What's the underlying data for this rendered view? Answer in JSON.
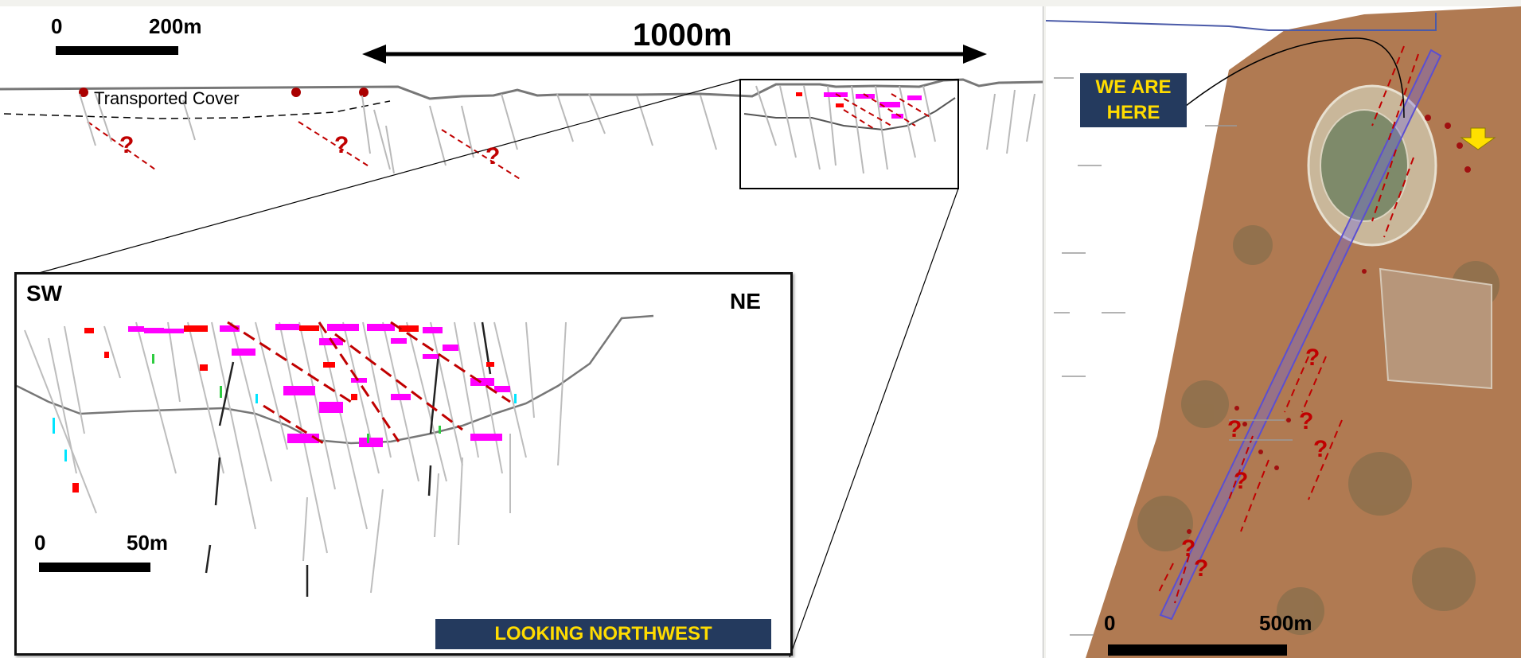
{
  "section": {
    "scale_small": {
      "start": "0",
      "end": "200m"
    },
    "scale_big": "1000m",
    "cover_label": "Transported Cover",
    "question_mark": "?"
  },
  "inset": {
    "left_orientation": "SW",
    "right_orientation": "NE",
    "scale": {
      "start": "0",
      "end": "50m"
    },
    "view_label": "LOOKING NORTHWEST"
  },
  "map": {
    "location_label": "WE ARE HERE",
    "scale": {
      "start": "0",
      "end": "500m"
    },
    "question_mark": "?"
  },
  "colors": {
    "fault": "#c00000",
    "magenta_assay": "#ff00ff",
    "red_assay": "#ff0000",
    "badge_bg": "#243a5e",
    "badge_text": "#ffdc00",
    "section_strip": "#6a5acd"
  }
}
